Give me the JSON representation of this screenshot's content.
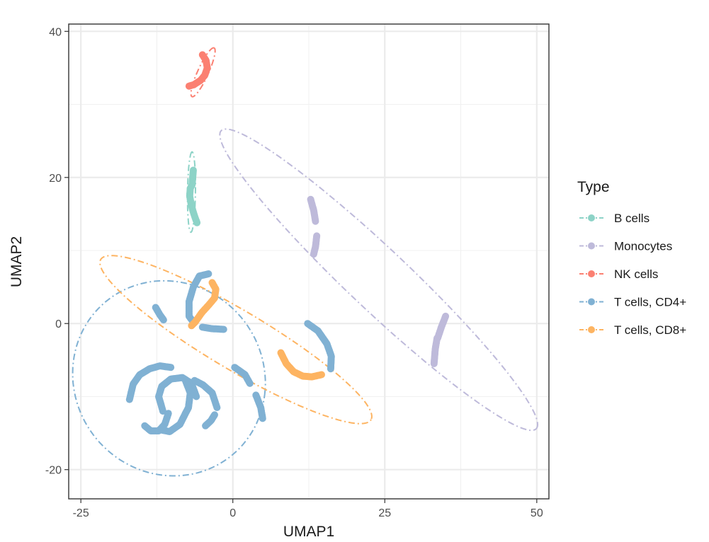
{
  "chart_data": {
    "type": "scatter",
    "title": "",
    "xlabel": "UMAP1",
    "ylabel": "UMAP2",
    "xlim": [
      -27,
      52
    ],
    "ylim": [
      -24,
      41
    ],
    "x_ticks": [
      -25,
      0,
      25,
      50
    ],
    "y_ticks": [
      -20,
      0,
      20,
      40
    ],
    "x_tick_labels": [
      "-25",
      "0",
      "25",
      "50"
    ],
    "y_tick_labels": [
      "-20",
      "0",
      "20",
      "40"
    ],
    "grid": true,
    "legend": {
      "title": "Type",
      "position": "right"
    },
    "ellipses": "dot-dash confidence ellipse per series",
    "series": [
      {
        "name": "B cells",
        "color": "#8dd3c7",
        "ellipse": {
          "cx": -6.8,
          "cy": 18,
          "rx": 5.5,
          "ry": 0.65,
          "angle_deg": 89
        },
        "segments": [
          [
            [
              -6.5,
              21
            ],
            [
              -6.6,
              20
            ],
            [
              -6.7,
              19
            ],
            [
              -7,
              18.5
            ],
            [
              -7.1,
              17.5
            ],
            [
              -6.9,
              16.5
            ],
            [
              -6.6,
              15.5
            ],
            [
              -6.2,
              14.5
            ],
            [
              -5.9,
              13.8
            ]
          ]
        ]
      },
      {
        "name": "Monocytes",
        "color": "#bebada",
        "ellipse": {
          "cx": 24,
          "cy": 6,
          "rx": 33,
          "ry": 4.5,
          "angle_deg": -38
        },
        "segments": [
          [
            [
              12.8,
              17
            ],
            [
              13.3,
              15.5
            ],
            [
              13.6,
              14
            ]
          ],
          [
            [
              13.8,
              12
            ],
            [
              13.6,
              10.5
            ],
            [
              13.3,
              9.5
            ]
          ],
          [
            [
              35,
              1
            ],
            [
              34.3,
              -0.5
            ],
            [
              33.7,
              -2
            ]
          ],
          [
            [
              33.6,
              -2
            ],
            [
              33.3,
              -3.5
            ],
            [
              33.1,
              -5.5
            ]
          ]
        ]
      },
      {
        "name": "NK cells",
        "color": "#fb8072",
        "ellipse": {
          "cx": -4.9,
          "cy": 34.4,
          "rx": 3.8,
          "ry": 0.85,
          "angle_deg": 61
        },
        "segments": [
          [
            [
              -5,
              36.8
            ],
            [
              -4.4,
              36
            ],
            [
              -4.2,
              35
            ],
            [
              -4.6,
              34
            ],
            [
              -5.3,
              33.3
            ],
            [
              -6.4,
              32.7
            ],
            [
              -7.2,
              32.5
            ]
          ]
        ]
      },
      {
        "name": "T cells, CD4+",
        "color": "#80b1d3",
        "ellipse": {
          "cx": -10.5,
          "cy": -7.5,
          "rx": 15.9,
          "ry": 13.3,
          "angle_deg": -8
        },
        "segments": [
          [
            [
              -12.7,
              2.2
            ],
            [
              -12,
              1.2
            ],
            [
              -11.4,
              0.5
            ]
          ],
          [
            [
              -4,
              6.8
            ],
            [
              -5.5,
              6.5
            ],
            [
              -6.5,
              5
            ],
            [
              -7.2,
              3
            ],
            [
              -7.2,
              1
            ],
            [
              -6.5,
              0.2
            ]
          ],
          [
            [
              -5,
              -0.5
            ],
            [
              -3.5,
              -0.7
            ],
            [
              -1.5,
              -0.8
            ]
          ],
          [
            [
              -17,
              -10.4
            ],
            [
              -16.4,
              -8.3
            ],
            [
              -15.3,
              -7
            ],
            [
              -13.7,
              -6.2
            ],
            [
              -12,
              -5.8
            ],
            [
              -10.2,
              -6
            ]
          ],
          [
            [
              -14.5,
              -14
            ],
            [
              -13.5,
              -14.7
            ],
            [
              -12.2,
              -14.7
            ],
            [
              -11.2,
              -13.8
            ],
            [
              -10.6,
              -12.3
            ]
          ],
          [
            [
              -11.5,
              -12
            ],
            [
              -12.2,
              -10
            ],
            [
              -11.7,
              -8.6
            ],
            [
              -10.2,
              -7.6
            ],
            [
              -8.3,
              -7.4
            ],
            [
              -6.8,
              -8.2
            ],
            [
              -6,
              -10
            ]
          ],
          [
            [
              -7.8,
              -7.8
            ],
            [
              -7,
              -9.5
            ],
            [
              -7.3,
              -11.5
            ],
            [
              -8.7,
              -13.8
            ],
            [
              -10.4,
              -14.8
            ],
            [
              -11.6,
              -14.6
            ]
          ],
          [
            [
              -6.3,
              -7.8
            ],
            [
              -4.9,
              -8.4
            ],
            [
              -3.4,
              -9.5
            ],
            [
              -2.6,
              -11.5
            ]
          ],
          [
            [
              -4.5,
              -14
            ],
            [
              -3.6,
              -13.3
            ],
            [
              -3,
              -12.5
            ]
          ],
          [
            [
              0.3,
              -6
            ],
            [
              2,
              -7
            ],
            [
              2.8,
              -8.2
            ]
          ],
          [
            [
              3.8,
              -9.8
            ],
            [
              4.6,
              -11.5
            ],
            [
              4.9,
              -13
            ]
          ],
          [
            [
              12.3,
              0
            ],
            [
              14,
              -1
            ],
            [
              15.5,
              -2.8
            ],
            [
              16.2,
              -4.5
            ],
            [
              16.1,
              -6.2
            ]
          ]
        ]
      },
      {
        "name": "T cells, CD8+",
        "color": "#fdb462",
        "ellipse": {
          "cx": 0.5,
          "cy": -2.2,
          "rx": 24.8,
          "ry": 4.2,
          "angle_deg": -26
        },
        "segments": [
          [
            [
              -3.4,
              5.6
            ],
            [
              -2.8,
              4.7
            ],
            [
              -3,
              3.5
            ],
            [
              -4,
              2.5
            ],
            [
              -5.1,
              1.5
            ],
            [
              -6.2,
              0.2
            ],
            [
              -6.8,
              -0.3
            ]
          ],
          [
            [
              7.9,
              -4
            ],
            [
              8.8,
              -5.5
            ],
            [
              10,
              -6.6
            ],
            [
              11.5,
              -7.2
            ],
            [
              13,
              -7.3
            ],
            [
              14.6,
              -7
            ]
          ]
        ]
      }
    ]
  }
}
